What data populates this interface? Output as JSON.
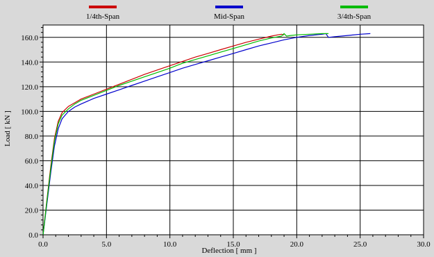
{
  "chart_data": {
    "type": "line",
    "xlabel": "Deflection [ mm ]",
    "ylabel": "Load [ kN ]",
    "xlim": [
      0,
      30
    ],
    "ylim": [
      0,
      170
    ],
    "xticks": [
      0,
      5,
      10,
      15,
      20,
      25,
      30
    ],
    "xtick_labels": [
      "0.0",
      "5.0",
      "10.0",
      "15.0",
      "20.0",
      "25.0",
      "30.0"
    ],
    "yticks": [
      0,
      20,
      40,
      60,
      80,
      100,
      120,
      140,
      160
    ],
    "ytick_labels": [
      "0.0",
      "20.0",
      "40.0",
      "60.0",
      "80.0",
      "100.0",
      "120.0",
      "140.0",
      "160.0"
    ],
    "grid": true,
    "legend_position": "top",
    "series": [
      {
        "name": "1/4th-Span",
        "color": "#cc0000",
        "x": [
          0,
          0.3,
          0.6,
          0.9,
          1.2,
          1.5,
          2,
          2.5,
          3,
          4,
          5,
          6,
          7,
          8,
          9,
          10,
          11,
          12,
          13,
          14,
          15,
          16,
          17,
          18,
          18.5,
          18.8,
          19
        ],
        "y": [
          0,
          28,
          55,
          78,
          92,
          99,
          104,
          107,
          110,
          114,
          118,
          122,
          126,
          130,
          133.5,
          137,
          140.5,
          144,
          147,
          150,
          153,
          156,
          158.5,
          161,
          162,
          162.5,
          162
        ]
      },
      {
        "name": "Mid-Span",
        "color": "#0000cc",
        "x": [
          0,
          0.3,
          0.6,
          0.9,
          1.2,
          1.5,
          2,
          2.5,
          3,
          4,
          5,
          6,
          7,
          8,
          9,
          10,
          11,
          12,
          13,
          14,
          15,
          16,
          17,
          18,
          19,
          20,
          21,
          22,
          22.3,
          22.5,
          23,
          24,
          25,
          25.8
        ],
        "y": [
          0,
          25,
          50,
          72,
          86,
          94,
          100,
          103.5,
          106,
          110.5,
          114,
          117.5,
          121,
          124.5,
          128,
          131.5,
          135,
          138,
          141,
          144,
          147,
          150,
          153,
          155.5,
          158,
          160,
          161.5,
          162.5,
          163,
          160,
          160.5,
          161.5,
          162.5,
          163
        ]
      },
      {
        "name": "3/4th-Span",
        "color": "#00bb00",
        "x": [
          0,
          0.3,
          0.6,
          0.9,
          1.2,
          1.5,
          2,
          2.5,
          3,
          4,
          5,
          6,
          7,
          8,
          9,
          10,
          10.5,
          11,
          12,
          13,
          14,
          15,
          16,
          17,
          18,
          18.8,
          19,
          19.2,
          19.5,
          20,
          21,
          22,
          22.5
        ],
        "y": [
          0,
          27,
          53,
          76,
          90,
          97,
          102,
          106,
          109,
          113,
          117,
          121,
          124.5,
          128,
          131.5,
          135,
          137,
          139,
          142,
          145,
          148,
          151,
          154,
          157,
          159.5,
          161,
          163,
          161,
          161.5,
          162,
          162.5,
          163,
          163
        ]
      }
    ]
  }
}
